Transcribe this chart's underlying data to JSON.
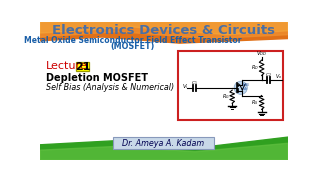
{
  "title": "Electronics Devices & Circuits",
  "subtitle": "Metal Oxide Semiconductor Field Effect Transistor",
  "subtitle2": "(MOSFET)",
  "lecture_label": "Lecture",
  "lecture_num": "21",
  "line1": "Depletion MOSFET",
  "line2": "Self Bias (Analysis & Numerical)",
  "author": "Dr. Ameya A. Kadam",
  "title_color": "#4a6fa5",
  "subtitle_color": "#1a5fa8",
  "subtitle2_color": "#1a5fa8",
  "lecture_color": "#cc0000",
  "lecture_box_color": "#ffff00",
  "circuit_box_color": "#cc2020",
  "author_box_bg": "#c8d8e8",
  "author_color": "#000050",
  "bg_white": "#ffffff",
  "orange1": "#e8780a",
  "orange2": "#f0a030",
  "green1": "#30a020",
  "green2": "#60c040"
}
